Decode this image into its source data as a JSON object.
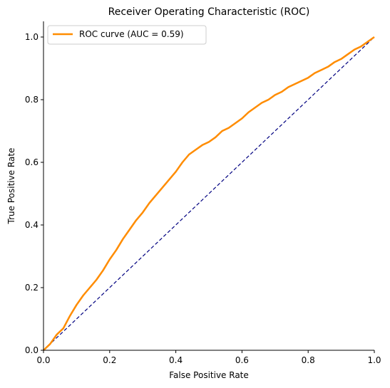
{
  "chart_data": {
    "type": "line",
    "title": "Receiver Operating Characteristic (ROC)",
    "xlabel": "False Positive Rate",
    "ylabel": "True Positive Rate",
    "xlim": [
      0.0,
      1.0
    ],
    "ylim": [
      0.0,
      1.05
    ],
    "xticks": [
      "0.0",
      "0.2",
      "0.4",
      "0.6",
      "0.8",
      "1.0"
    ],
    "yticks": [
      "0.0",
      "0.2",
      "0.4",
      "0.6",
      "0.8",
      "1.0"
    ],
    "grid": false,
    "legend_position": "top-left",
    "series": [
      {
        "name": "ROC curve (AUC = 0.59)",
        "color": "#ff8c00",
        "style": "solid",
        "points": [
          [
            0.0,
            0.0
          ],
          [
            0.02,
            0.02
          ],
          [
            0.04,
            0.05
          ],
          [
            0.06,
            0.07
          ],
          [
            0.08,
            0.11
          ],
          [
            0.1,
            0.145
          ],
          [
            0.12,
            0.175
          ],
          [
            0.14,
            0.2
          ],
          [
            0.16,
            0.225
          ],
          [
            0.18,
            0.255
          ],
          [
            0.2,
            0.29
          ],
          [
            0.22,
            0.32
          ],
          [
            0.24,
            0.355
          ],
          [
            0.26,
            0.385
          ],
          [
            0.28,
            0.415
          ],
          [
            0.3,
            0.44
          ],
          [
            0.32,
            0.47
          ],
          [
            0.34,
            0.495
          ],
          [
            0.36,
            0.52
          ],
          [
            0.38,
            0.545
          ],
          [
            0.4,
            0.57
          ],
          [
            0.42,
            0.6
          ],
          [
            0.44,
            0.625
          ],
          [
            0.46,
            0.64
          ],
          [
            0.48,
            0.655
          ],
          [
            0.5,
            0.665
          ],
          [
            0.52,
            0.68
          ],
          [
            0.54,
            0.7
          ],
          [
            0.56,
            0.71
          ],
          [
            0.58,
            0.725
          ],
          [
            0.6,
            0.74
          ],
          [
            0.62,
            0.76
          ],
          [
            0.64,
            0.775
          ],
          [
            0.66,
            0.79
          ],
          [
            0.68,
            0.8
          ],
          [
            0.7,
            0.815
          ],
          [
            0.72,
            0.825
          ],
          [
            0.74,
            0.84
          ],
          [
            0.76,
            0.85
          ],
          [
            0.78,
            0.86
          ],
          [
            0.8,
            0.87
          ],
          [
            0.82,
            0.885
          ],
          [
            0.84,
            0.895
          ],
          [
            0.86,
            0.905
          ],
          [
            0.88,
            0.92
          ],
          [
            0.9,
            0.93
          ],
          [
            0.92,
            0.945
          ],
          [
            0.94,
            0.96
          ],
          [
            0.96,
            0.97
          ],
          [
            0.98,
            0.985
          ],
          [
            1.0,
            1.0
          ]
        ]
      },
      {
        "name": "",
        "color": "#000080",
        "style": "dashed",
        "points": [
          [
            0.0,
            0.0
          ],
          [
            1.0,
            1.0
          ]
        ]
      }
    ]
  }
}
